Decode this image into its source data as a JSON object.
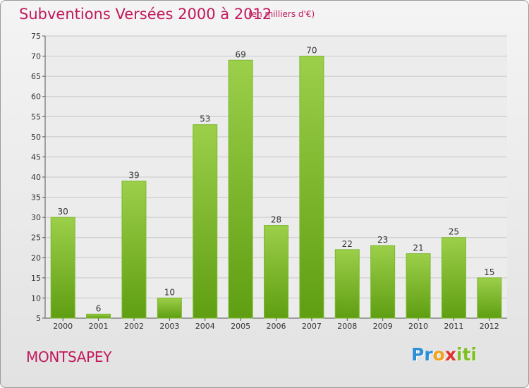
{
  "header": {
    "title": "Subventions Versées 2000 à 2012",
    "unit": "(en milliers d'€)"
  },
  "footer": {
    "commune": "MONTSAPEY",
    "brand": {
      "letters": [
        "P",
        "r",
        "o",
        "x",
        "i",
        "t",
        "i"
      ],
      "colors": [
        "#2a8fd6",
        "#2a8fd6",
        "#f2a31b",
        "#e3312e",
        "#7fbf25",
        "#7fbf25",
        "#7fbf25"
      ]
    }
  },
  "colors": {
    "accent": "#c2185b",
    "bar_top": "#9ccf4a",
    "bar_bottom": "#5f9e12"
  },
  "chart_data": {
    "type": "bar",
    "title": "Subventions Versées 2000 à 2012",
    "subtitle": "(en milliers d'€)",
    "categories": [
      "2000",
      "2001",
      "2002",
      "2003",
      "2004",
      "2005",
      "2006",
      "2007",
      "2008",
      "2009",
      "2010",
      "2011",
      "2012"
    ],
    "values": [
      30,
      6,
      39,
      10,
      53,
      69,
      28,
      70,
      22,
      23,
      21,
      25,
      15
    ],
    "ylim": [
      5,
      75
    ],
    "yticks": [
      5,
      10,
      15,
      20,
      25,
      30,
      35,
      40,
      45,
      50,
      55,
      60,
      65,
      70,
      75
    ],
    "grid": true,
    "xlabel": "",
    "ylabel": ""
  }
}
